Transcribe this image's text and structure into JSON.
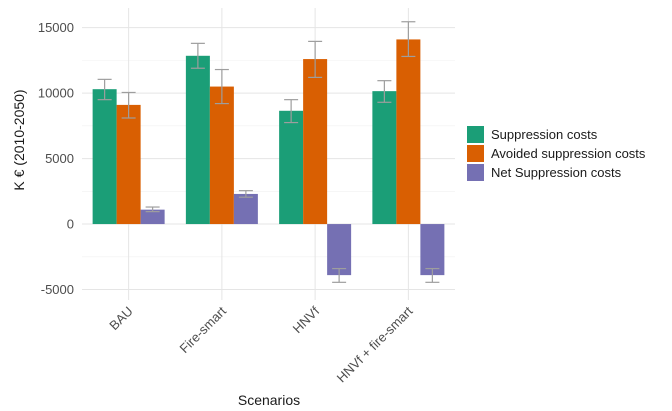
{
  "chart_data": {
    "type": "bar",
    "title": "",
    "xlabel": "Scenarios",
    "ylabel": "K € (2010-2050)",
    "categories": [
      "BAU",
      "Fire-smart",
      "HNVf",
      "HNVf + fire-smart"
    ],
    "ylim": [
      -5800,
      16500
    ],
    "yticks": [
      -5000,
      0,
      5000,
      10000,
      15000
    ],
    "ytick_labels": [
      "-5000",
      "0",
      "5000",
      "10000",
      "15000"
    ],
    "grid": true,
    "legend_position": "right",
    "series": [
      {
        "name": "Suppression costs",
        "color": "#1b9e77",
        "values": [
          10300,
          12850,
          8650,
          10150
        ],
        "error_low": [
          9500,
          11900,
          7750,
          9300
        ],
        "error_high": [
          11050,
          13800,
          9500,
          10950
        ]
      },
      {
        "name": "Avoided suppression costs",
        "color": "#d95f02",
        "values": [
          9100,
          10500,
          12600,
          14100
        ],
        "error_low": [
          8100,
          9200,
          11200,
          12800
        ],
        "error_high": [
          10050,
          11800,
          13950,
          15450
        ]
      },
      {
        "name": "Net Suppression costs",
        "color": "#7570b3",
        "values": [
          1100,
          2300,
          -3900,
          -3900
        ],
        "error_low": [
          950,
          2050,
          -4450,
          -4450
        ],
        "error_high": [
          1300,
          2550,
          -3400,
          -3400
        ]
      }
    ]
  }
}
